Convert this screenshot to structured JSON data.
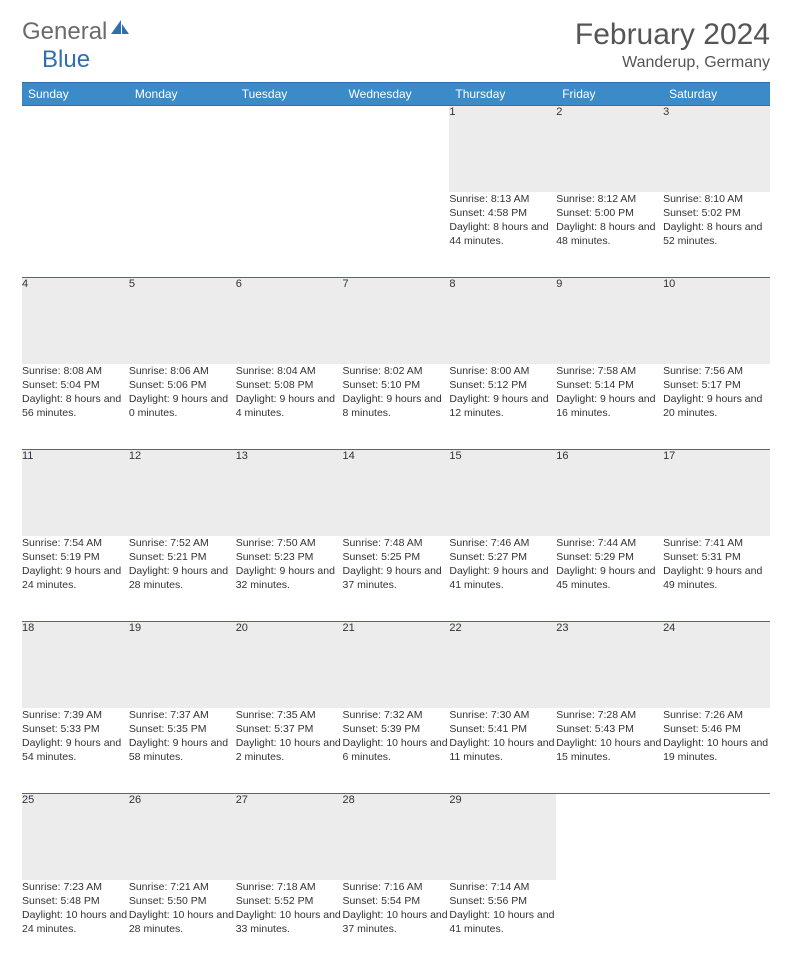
{
  "logo": {
    "text1": "General",
    "text2": "Blue"
  },
  "title": "February 2024",
  "location": "Wanderup, Germany",
  "styles": {
    "accent_color": "#3b8bc9",
    "rule_color": "#2f6fae",
    "daynum_bg": "#ececec",
    "text_color": "#333333",
    "header_text_color": "#555555",
    "background": "#ffffff",
    "title_fontsize": 30,
    "location_fontsize": 16,
    "cell_fontsize": 10.5
  },
  "weekdays": [
    "Sunday",
    "Monday",
    "Tuesday",
    "Wednesday",
    "Thursday",
    "Friday",
    "Saturday"
  ],
  "weeks": [
    [
      null,
      null,
      null,
      null,
      {
        "n": "1",
        "sunrise": "8:13 AM",
        "sunset": "4:58 PM",
        "daylight": "8 hours and 44 minutes."
      },
      {
        "n": "2",
        "sunrise": "8:12 AM",
        "sunset": "5:00 PM",
        "daylight": "8 hours and 48 minutes."
      },
      {
        "n": "3",
        "sunrise": "8:10 AM",
        "sunset": "5:02 PM",
        "daylight": "8 hours and 52 minutes."
      }
    ],
    [
      {
        "n": "4",
        "sunrise": "8:08 AM",
        "sunset": "5:04 PM",
        "daylight": "8 hours and 56 minutes."
      },
      {
        "n": "5",
        "sunrise": "8:06 AM",
        "sunset": "5:06 PM",
        "daylight": "9 hours and 0 minutes."
      },
      {
        "n": "6",
        "sunrise": "8:04 AM",
        "sunset": "5:08 PM",
        "daylight": "9 hours and 4 minutes."
      },
      {
        "n": "7",
        "sunrise": "8:02 AM",
        "sunset": "5:10 PM",
        "daylight": "9 hours and 8 minutes."
      },
      {
        "n": "8",
        "sunrise": "8:00 AM",
        "sunset": "5:12 PM",
        "daylight": "9 hours and 12 minutes."
      },
      {
        "n": "9",
        "sunrise": "7:58 AM",
        "sunset": "5:14 PM",
        "daylight": "9 hours and 16 minutes."
      },
      {
        "n": "10",
        "sunrise": "7:56 AM",
        "sunset": "5:17 PM",
        "daylight": "9 hours and 20 minutes."
      }
    ],
    [
      {
        "n": "11",
        "sunrise": "7:54 AM",
        "sunset": "5:19 PM",
        "daylight": "9 hours and 24 minutes."
      },
      {
        "n": "12",
        "sunrise": "7:52 AM",
        "sunset": "5:21 PM",
        "daylight": "9 hours and 28 minutes."
      },
      {
        "n": "13",
        "sunrise": "7:50 AM",
        "sunset": "5:23 PM",
        "daylight": "9 hours and 32 minutes."
      },
      {
        "n": "14",
        "sunrise": "7:48 AM",
        "sunset": "5:25 PM",
        "daylight": "9 hours and 37 minutes."
      },
      {
        "n": "15",
        "sunrise": "7:46 AM",
        "sunset": "5:27 PM",
        "daylight": "9 hours and 41 minutes."
      },
      {
        "n": "16",
        "sunrise": "7:44 AM",
        "sunset": "5:29 PM",
        "daylight": "9 hours and 45 minutes."
      },
      {
        "n": "17",
        "sunrise": "7:41 AM",
        "sunset": "5:31 PM",
        "daylight": "9 hours and 49 minutes."
      }
    ],
    [
      {
        "n": "18",
        "sunrise": "7:39 AM",
        "sunset": "5:33 PM",
        "daylight": "9 hours and 54 minutes."
      },
      {
        "n": "19",
        "sunrise": "7:37 AM",
        "sunset": "5:35 PM",
        "daylight": "9 hours and 58 minutes."
      },
      {
        "n": "20",
        "sunrise": "7:35 AM",
        "sunset": "5:37 PM",
        "daylight": "10 hours and 2 minutes."
      },
      {
        "n": "21",
        "sunrise": "7:32 AM",
        "sunset": "5:39 PM",
        "daylight": "10 hours and 6 minutes."
      },
      {
        "n": "22",
        "sunrise": "7:30 AM",
        "sunset": "5:41 PM",
        "daylight": "10 hours and 11 minutes."
      },
      {
        "n": "23",
        "sunrise": "7:28 AM",
        "sunset": "5:43 PM",
        "daylight": "10 hours and 15 minutes."
      },
      {
        "n": "24",
        "sunrise": "7:26 AM",
        "sunset": "5:46 PM",
        "daylight": "10 hours and 19 minutes."
      }
    ],
    [
      {
        "n": "25",
        "sunrise": "7:23 AM",
        "sunset": "5:48 PM",
        "daylight": "10 hours and 24 minutes."
      },
      {
        "n": "26",
        "sunrise": "7:21 AM",
        "sunset": "5:50 PM",
        "daylight": "10 hours and 28 minutes."
      },
      {
        "n": "27",
        "sunrise": "7:18 AM",
        "sunset": "5:52 PM",
        "daylight": "10 hours and 33 minutes."
      },
      {
        "n": "28",
        "sunrise": "7:16 AM",
        "sunset": "5:54 PM",
        "daylight": "10 hours and 37 minutes."
      },
      {
        "n": "29",
        "sunrise": "7:14 AM",
        "sunset": "5:56 PM",
        "daylight": "10 hours and 41 minutes."
      },
      null,
      null
    ]
  ],
  "labels": {
    "sunrise": "Sunrise: ",
    "sunset": "Sunset: ",
    "daylight": "Daylight: "
  }
}
